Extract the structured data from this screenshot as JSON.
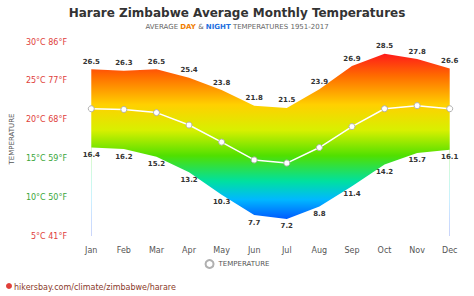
{
  "chart_data": {
    "type": "line",
    "title": "Harare Zimbabwe Average Monthly Temperatures",
    "subtitle": [
      {
        "text": "AVERAGE "
      },
      {
        "text": "DAY",
        "color": "#f07d00"
      },
      {
        "text": " & "
      },
      {
        "text": "NIGHT",
        "color": "#1f6fe0"
      },
      {
        "text": " TEMPERATURES 1951-2017"
      }
    ],
    "y_label": "TEMPERATURE",
    "source": "hikersbay.com/climate/zimbabwe/harare",
    "categories": [
      "Jan",
      "Feb",
      "Mar",
      "Apr",
      "May",
      "Jun",
      "Jul",
      "Aug",
      "Sep",
      "Oct",
      "Nov",
      "Dec"
    ],
    "day": [
      26.5,
      26.3,
      26.5,
      25.4,
      23.8,
      21.8,
      21.5,
      23.9,
      26.9,
      28.5,
      27.8,
      26.6
    ],
    "night": [
      16.4,
      16.2,
      15.2,
      13.2,
      10.3,
      7.7,
      7.2,
      8.8,
      11.4,
      14.2,
      15.7,
      16.1
    ],
    "series": [
      {
        "name": "TEMPERATURE",
        "color": "#ffffff",
        "marker": "circle",
        "values": [
          21.4,
          21.3,
          20.9,
          19.3,
          17.1,
          14.8,
          14.4,
          16.4,
          19.1,
          21.4,
          21.8,
          21.4
        ]
      }
    ],
    "ylim": [
      5,
      30
    ],
    "yticks": [
      {
        "value": 5,
        "label": "5°C 41°F"
      },
      {
        "value": 10,
        "label": "10°C 50°F"
      },
      {
        "value": 15,
        "label": "15°C 59°F"
      },
      {
        "value": 20,
        "label": "20°C 68°F"
      },
      {
        "value": 25,
        "label": "25°C 77°F"
      },
      {
        "value": 30,
        "label": "30°C 86°F"
      }
    ],
    "data_labels": true,
    "legend": "bottom",
    "grid": false
  }
}
